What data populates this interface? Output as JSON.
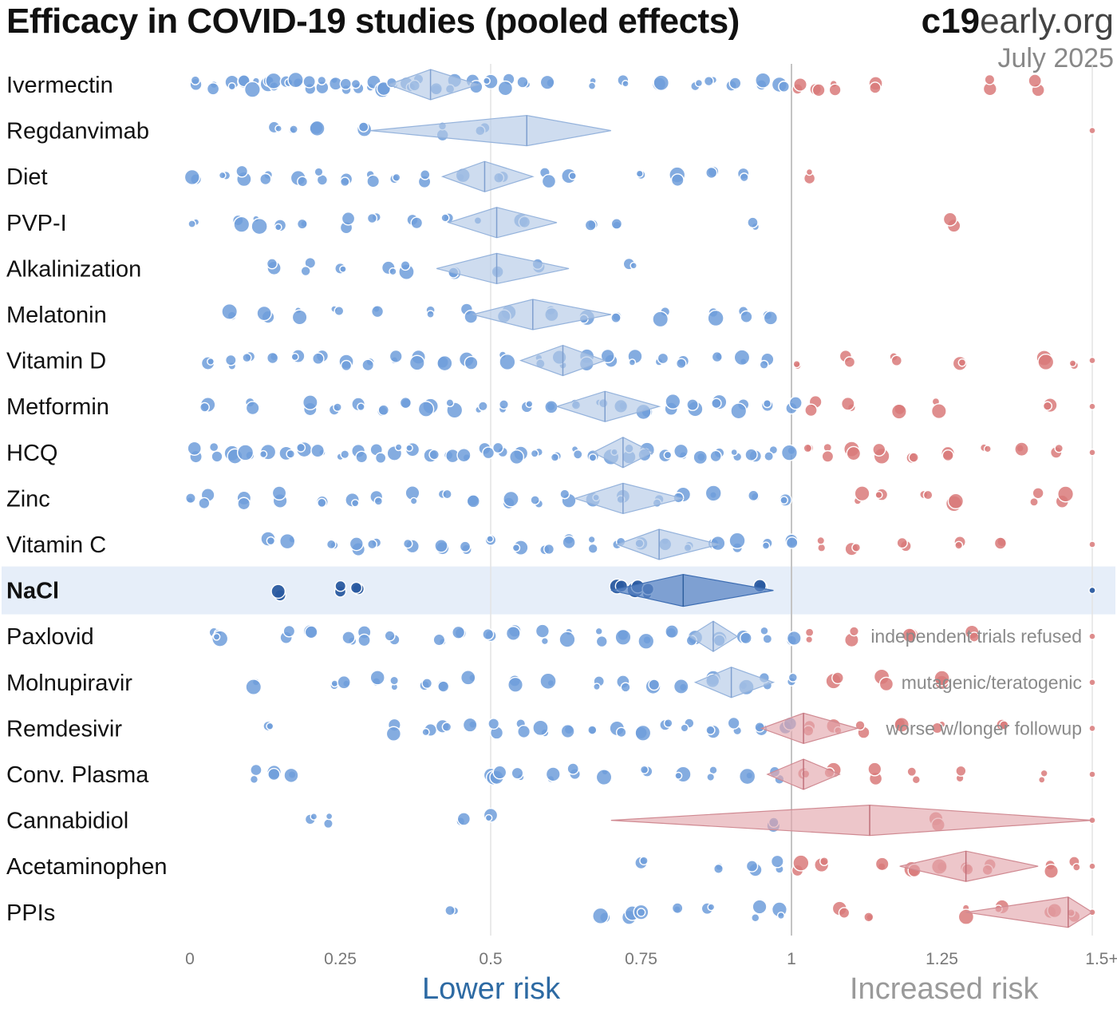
{
  "header": {
    "title": "Efficacy in COVID-19 studies (pooled effects)",
    "brand_bold": "c19",
    "brand_rest": "early.org",
    "date": "July 2025"
  },
  "axis_labels": {
    "lower": "Lower risk",
    "higher": "Increased risk"
  },
  "colors": {
    "benefit": "#6f9edb",
    "harm": "#d97a7a",
    "benefit_diamond": "#b3c9e6",
    "harm_diamond": "#e3a7ae",
    "highlight_band": "#e6eef9",
    "highlight_dot": "#2a5aa0"
  },
  "chart_data": {
    "type": "scatter",
    "title": "Efficacy in COVID-19 studies (pooled effects)",
    "x_ticks": [
      "0",
      "0.25",
      "0.5",
      "0.75",
      "1",
      "1.25",
      "1.5+"
    ],
    "xlim": [
      0,
      1.5
    ],
    "reference_lines": [
      0.5,
      1.0,
      1.5
    ],
    "highlight": "NaCl",
    "rows": [
      {
        "label": "Ivermectin",
        "pooled": 0.4,
        "ci": [
          0.33,
          0.48
        ],
        "dots": [
          0.01,
          0.04,
          0.07,
          0.09,
          0.11,
          0.13,
          0.14,
          0.16,
          0.18,
          0.2,
          0.22,
          0.24,
          0.26,
          0.28,
          0.3,
          0.32,
          0.34,
          0.36,
          0.38,
          0.41,
          0.44,
          0.47,
          0.5,
          0.53,
          0.56,
          0.6,
          0.67,
          0.72,
          0.78,
          0.84,
          0.87,
          0.9,
          0.95,
          0.98,
          1.01,
          1.04,
          1.07,
          1.14,
          1.33,
          1.41
        ]
      },
      {
        "label": "Regdanvimab",
        "pooled": 0.56,
        "ci": [
          0.3,
          0.7
        ],
        "dots": [
          0.14,
          0.17,
          0.21,
          0.29,
          0.42,
          0.49,
          1.5
        ]
      },
      {
        "label": "Diet",
        "pooled": 0.49,
        "ci": [
          0.42,
          0.57
        ],
        "dots": [
          0.01,
          0.06,
          0.09,
          0.13,
          0.18,
          0.22,
          0.26,
          0.3,
          0.34,
          0.39,
          0.45,
          0.52,
          0.59,
          0.63,
          0.75,
          0.81,
          0.87,
          0.92,
          1.03
        ]
      },
      {
        "label": "PVP-I",
        "pooled": 0.51,
        "ci": [
          0.43,
          0.61
        ],
        "dots": [
          0.01,
          0.08,
          0.11,
          0.15,
          0.19,
          0.26,
          0.31,
          0.37,
          0.43,
          0.48,
          0.55,
          0.67,
          0.71,
          0.94,
          1.27
        ]
      },
      {
        "label": "Alkalinization",
        "pooled": 0.51,
        "ci": [
          0.41,
          0.63
        ],
        "dots": [
          0.14,
          0.2,
          0.25,
          0.33,
          0.36,
          0.44,
          0.51,
          0.58,
          0.73
        ]
      },
      {
        "label": "Melatonin",
        "pooled": 0.57,
        "ci": [
          0.47,
          0.7
        ],
        "dots": [
          0.07,
          0.13,
          0.18,
          0.24,
          0.31,
          0.4,
          0.46,
          0.53,
          0.6,
          0.66,
          0.71,
          0.79,
          0.87,
          0.92,
          0.96
        ]
      },
      {
        "label": "Vitamin D",
        "pooled": 0.62,
        "ci": [
          0.55,
          0.69
        ],
        "dots": [
          0.03,
          0.07,
          0.1,
          0.14,
          0.18,
          0.22,
          0.26,
          0.3,
          0.34,
          0.38,
          0.42,
          0.46,
          0.52,
          0.58,
          0.62,
          0.66,
          0.7,
          0.74,
          0.78,
          0.82,
          0.88,
          0.92,
          0.96,
          1.01,
          1.09,
          1.17,
          1.28,
          1.42,
          1.47,
          1.5
        ]
      },
      {
        "label": "Metformin",
        "pooled": 0.69,
        "ci": [
          0.61,
          0.78
        ],
        "dots": [
          0.03,
          0.1,
          0.2,
          0.24,
          0.28,
          0.32,
          0.36,
          0.4,
          0.44,
          0.48,
          0.52,
          0.56,
          0.6,
          0.64,
          0.68,
          0.72,
          0.76,
          0.8,
          0.84,
          0.88,
          0.92,
          0.96,
          1.0,
          1.04,
          1.1,
          1.18,
          1.24,
          1.43,
          1.5
        ]
      },
      {
        "label": "HCQ",
        "pooled": 0.72,
        "ci": [
          0.67,
          0.77
        ],
        "dots": [
          0.01,
          0.04,
          0.07,
          0.1,
          0.13,
          0.16,
          0.19,
          0.22,
          0.25,
          0.28,
          0.31,
          0.34,
          0.37,
          0.4,
          0.43,
          0.46,
          0.49,
          0.52,
          0.55,
          0.58,
          0.61,
          0.64,
          0.67,
          0.7,
          0.73,
          0.76,
          0.79,
          0.82,
          0.85,
          0.88,
          0.91,
          0.94,
          0.97,
          1.0,
          1.03,
          1.06,
          1.1,
          1.15,
          1.2,
          1.26,
          1.32,
          1.38,
          1.44,
          1.5
        ]
      },
      {
        "label": "Zinc",
        "pooled": 0.72,
        "ci": [
          0.64,
          0.82
        ],
        "dots": [
          0.0,
          0.03,
          0.09,
          0.15,
          0.22,
          0.27,
          0.31,
          0.37,
          0.42,
          0.47,
          0.53,
          0.58,
          0.63,
          0.67,
          0.72,
          0.78,
          0.82,
          0.87,
          0.94,
          0.99,
          1.11,
          1.15,
          1.22,
          1.27,
          1.41,
          1.45
        ]
      },
      {
        "label": "Vitamin C",
        "pooled": 0.78,
        "ci": [
          0.71,
          0.88
        ],
        "dots": [
          0.13,
          0.17,
          0.24,
          0.28,
          0.31,
          0.37,
          0.42,
          0.46,
          0.5,
          0.55,
          0.59,
          0.63,
          0.67,
          0.71,
          0.75,
          0.79,
          0.83,
          0.87,
          0.91,
          0.96,
          1.0,
          1.05,
          1.1,
          1.19,
          1.28,
          1.35,
          1.5
        ]
      },
      {
        "label": "NaCl",
        "pooled": 0.82,
        "ci": [
          0.7,
          0.97
        ],
        "dots": [
          0.15,
          0.25,
          0.28,
          0.71,
          0.74,
          0.76,
          0.95,
          1.5
        ]
      },
      {
        "label": "Paxlovid",
        "pooled": 0.87,
        "ci": [
          0.83,
          0.91
        ],
        "dots": [
          0.04,
          0.05,
          0.16,
          0.2,
          0.27,
          0.29,
          0.34,
          0.42,
          0.45,
          0.5,
          0.54,
          0.59,
          0.63,
          0.68,
          0.72,
          0.76,
          0.8,
          0.84,
          0.88,
          0.92,
          0.96,
          1.0,
          1.03,
          1.1,
          1.2,
          1.3,
          1.5
        ]
      },
      {
        "label": "Molnupiravir",
        "pooled": 0.9,
        "ci": [
          0.84,
          0.97
        ],
        "dots": [
          0.11,
          0.24,
          0.26,
          0.31,
          0.34,
          0.39,
          0.42,
          0.47,
          0.54,
          0.6,
          0.68,
          0.72,
          0.77,
          0.82,
          0.87,
          0.92,
          0.96,
          1.0,
          1.07,
          1.15,
          1.25,
          1.5
        ]
      },
      {
        "label": "Remdesivir",
        "pooled": 1.02,
        "ci": [
          0.95,
          1.11
        ],
        "dots": [
          0.13,
          0.34,
          0.4,
          0.42,
          0.47,
          0.51,
          0.55,
          0.59,
          0.63,
          0.67,
          0.71,
          0.75,
          0.79,
          0.83,
          0.87,
          0.91,
          0.95,
          0.99,
          1.03,
          1.07,
          1.12,
          1.18,
          1.25,
          1.35,
          1.5
        ]
      },
      {
        "label": "Conv. Plasma",
        "pooled": 1.02,
        "ci": [
          0.96,
          1.08
        ],
        "dots": [
          0.11,
          0.14,
          0.17,
          0.5,
          0.51,
          0.55,
          0.6,
          0.64,
          0.69,
          0.76,
          0.82,
          0.87,
          0.93,
          0.98,
          1.02,
          1.07,
          1.14,
          1.2,
          1.28,
          1.42,
          1.5
        ]
      },
      {
        "label": "Cannabidiol",
        "pooled": 1.13,
        "ci": [
          0.7,
          1.5
        ],
        "dots": [
          0.2,
          0.23,
          0.45,
          0.5,
          0.97,
          1.24,
          1.5
        ]
      },
      {
        "label": "Acetaminophen",
        "pooled": 1.29,
        "ci": [
          1.18,
          1.41
        ],
        "dots": [
          0.75,
          0.88,
          0.94,
          0.98,
          1.01,
          1.05,
          1.15,
          1.2,
          1.25,
          1.29,
          1.33,
          1.43,
          1.47,
          1.5
        ]
      },
      {
        "label": "PPIs",
        "pooled": 1.46,
        "ci": [
          1.29,
          1.6
        ],
        "dots": [
          0.44,
          0.69,
          0.73,
          0.75,
          0.81,
          0.86,
          0.94,
          0.98,
          1.08,
          1.13,
          1.29,
          1.35,
          1.43,
          1.47,
          1.5
        ]
      }
    ],
    "annotations": [
      {
        "row": "Paxlovid",
        "text": "independent trials refused"
      },
      {
        "row": "Molnupiravir",
        "text": "mutagenic/teratogenic"
      },
      {
        "row": "Remdesivir",
        "text": "worse w/longer followup"
      }
    ]
  }
}
